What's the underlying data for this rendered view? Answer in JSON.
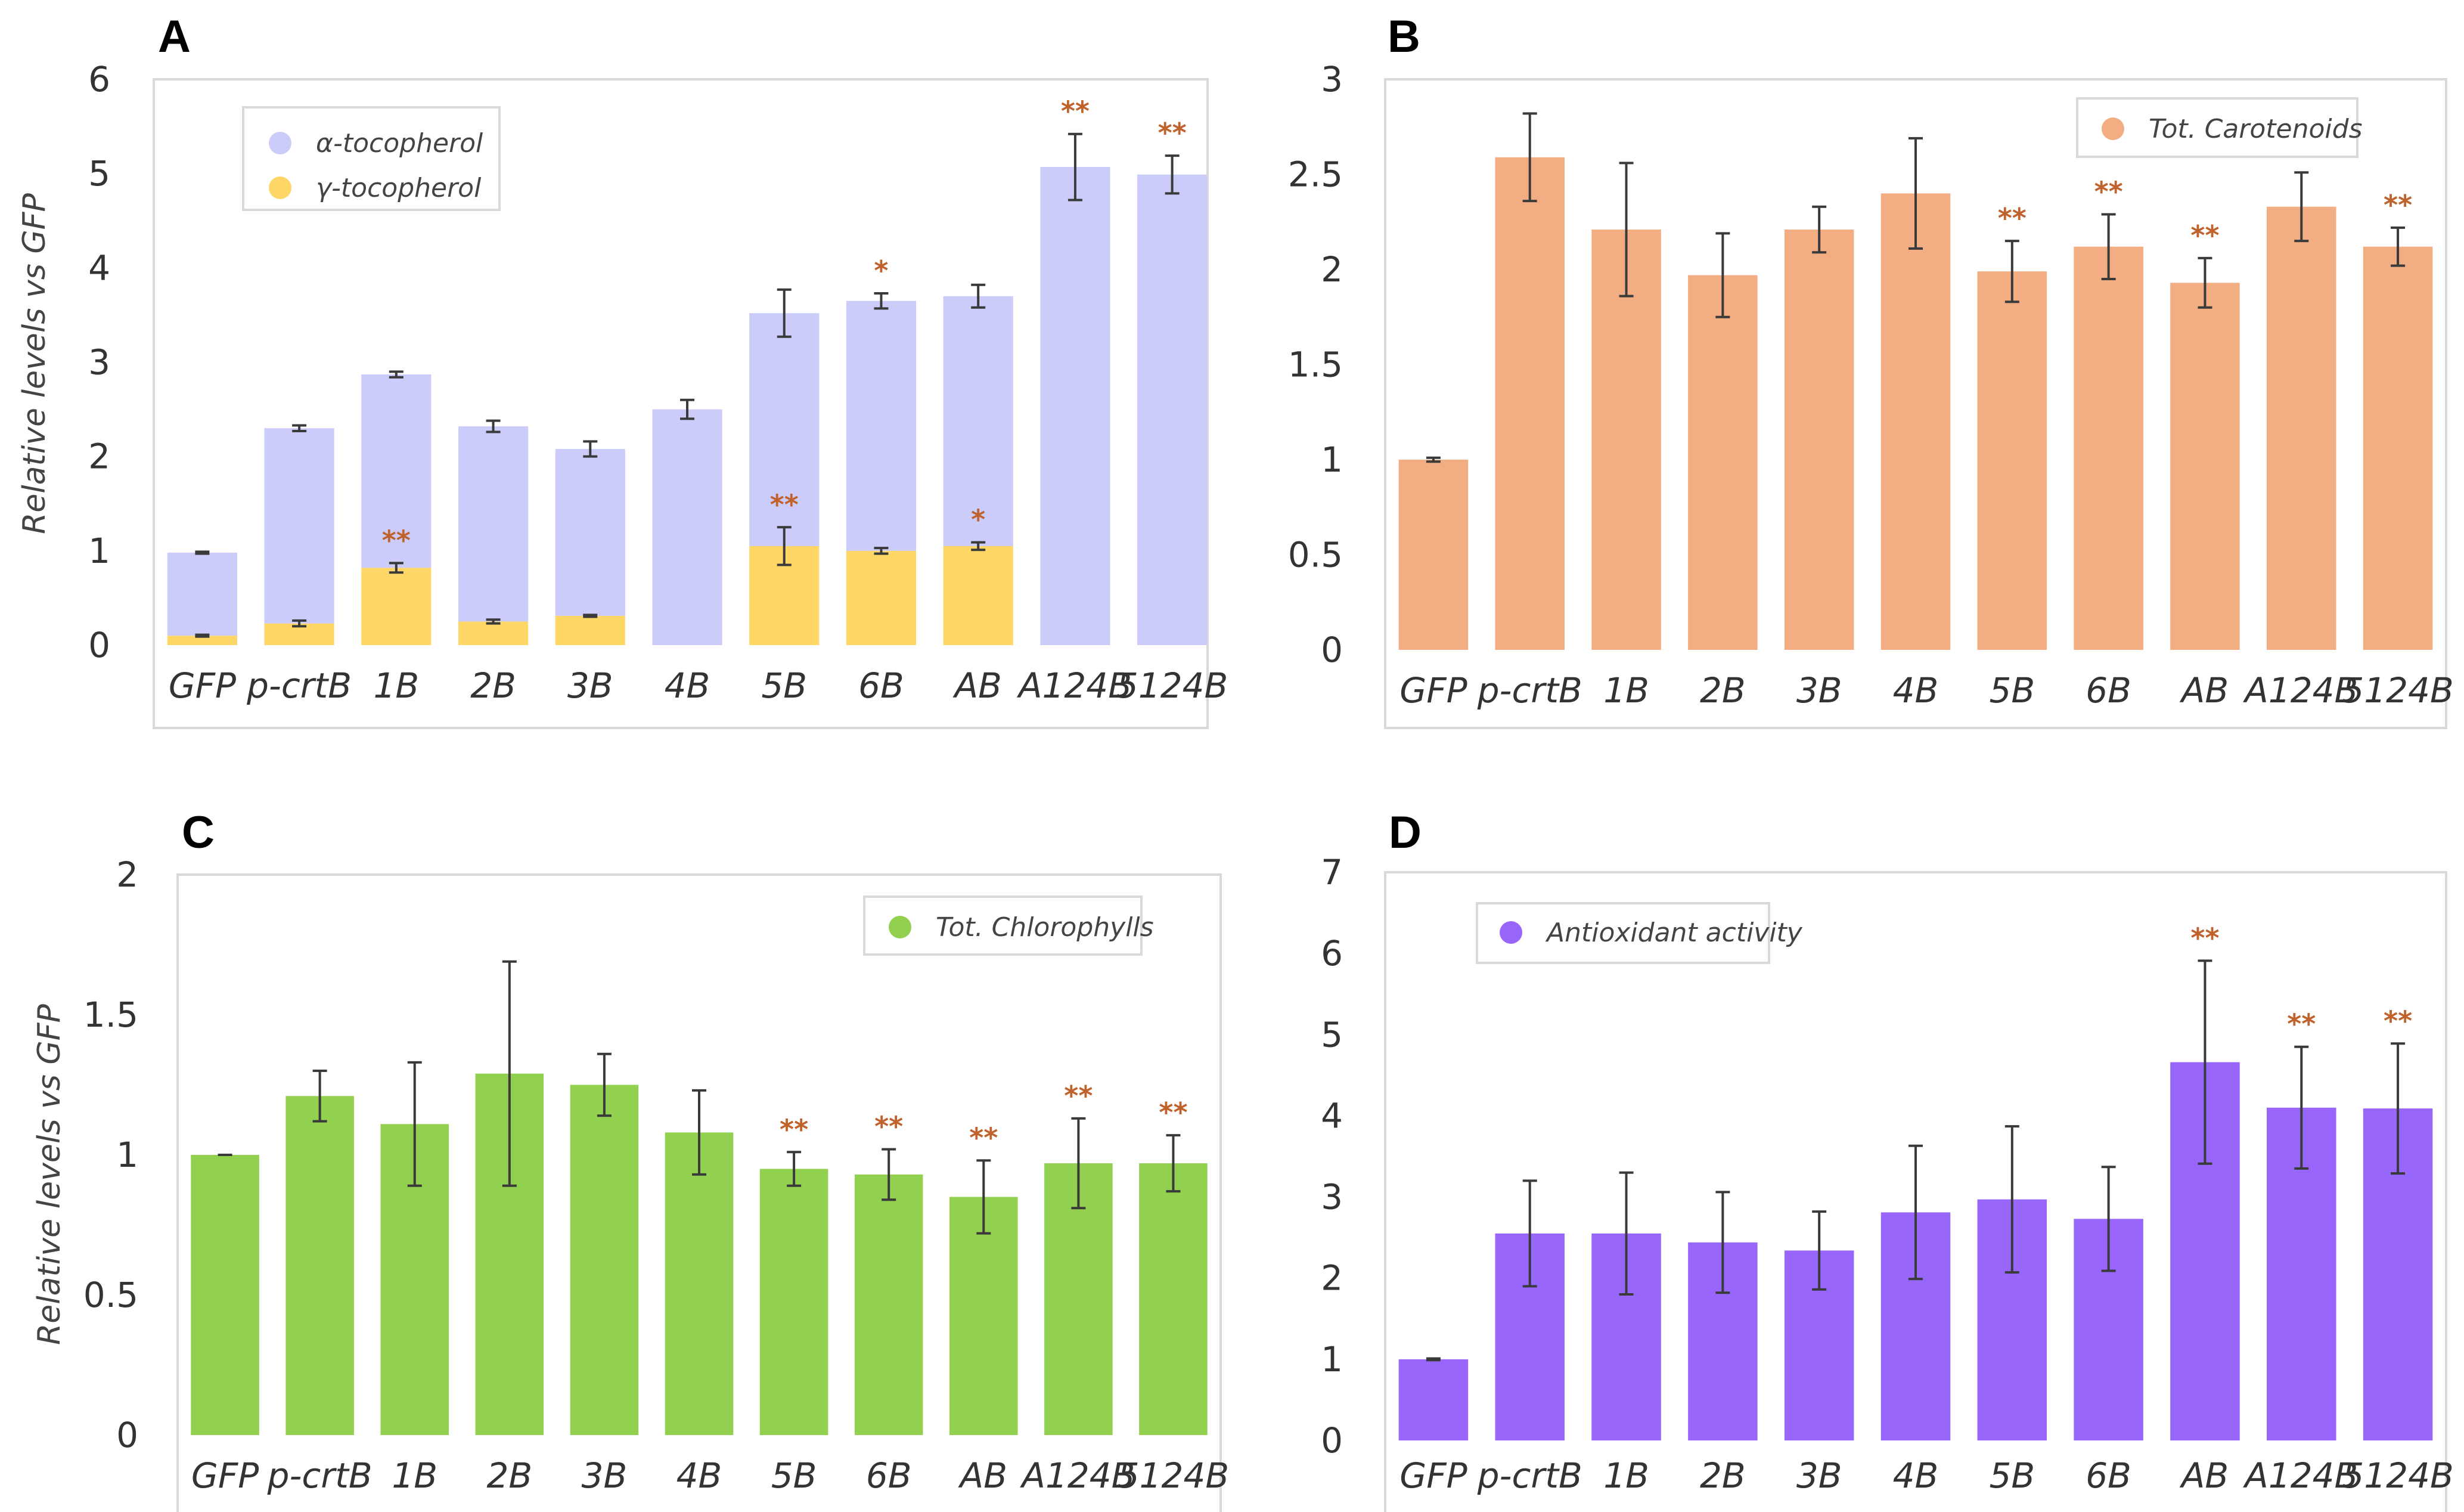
{
  "colors": {
    "alpha_toco": "#ccccfb",
    "gamma_toco": "#fed766",
    "carotenoids": "#f2ae82",
    "chlorophylls": "#92d050",
    "antioxidant": "#9966fb",
    "significance": "#c0622b"
  },
  "chart_data": [
    {
      "panel": "A",
      "type": "bar",
      "stacked": true,
      "title": "",
      "xlabel": "",
      "ylabel": "Relative levels vs GFP",
      "ylim": [
        0,
        6
      ],
      "yticks": [
        "0",
        "1",
        "2",
        "3",
        "4",
        "5",
        "6"
      ],
      "legend_position": "top-left",
      "categories": [
        "GFP",
        "p-crtB",
        "1B",
        "2B",
        "3B",
        "4B",
        "5B",
        "6B",
        "AB",
        "A124B",
        "5124B"
      ],
      "series": [
        {
          "name": "γ-tocopherol",
          "color_key": "gamma_toco",
          "values": [
            0.1,
            0.23,
            0.82,
            0.25,
            0.31,
            0,
            1.05,
            1.0,
            1.05,
            0,
            0
          ],
          "errors": [
            0.01,
            0.03,
            0.05,
            0.02,
            0.01,
            0,
            0.2,
            0.03,
            0.04,
            0,
            0
          ],
          "significance": [
            "",
            "",
            "**",
            "",
            "",
            "",
            "**",
            "",
            "*",
            "",
            ""
          ]
        },
        {
          "name": "α-tocopherol",
          "color_key": "alpha_toco",
          "values": [
            0.88,
            2.07,
            2.05,
            2.07,
            1.77,
            2.5,
            2.47,
            2.65,
            2.65,
            5.07,
            4.99
          ],
          "errors": [
            0.01,
            0.03,
            0.03,
            0.06,
            0.08,
            0.1,
            0.25,
            0.08,
            0.12,
            0.35,
            0.2
          ],
          "significance": [
            "",
            "",
            "",
            "",
            "",
            "",
            "",
            "*",
            "",
            "**",
            "**"
          ]
        }
      ]
    },
    {
      "panel": "B",
      "type": "bar",
      "title": "",
      "xlabel": "",
      "ylabel": "",
      "ylim": [
        0,
        3
      ],
      "yticks": [
        "0",
        "0.5",
        "1",
        "1.5",
        "2",
        "2.5",
        "3"
      ],
      "legend_position": "top-right",
      "categories": [
        "GFP",
        "p-crtB",
        "1B",
        "2B",
        "3B",
        "4B",
        "5B",
        "6B",
        "AB",
        "A124B",
        "5124B"
      ],
      "series": [
        {
          "name": "Tot. Carotenoids",
          "color_key": "carotenoids",
          "values": [
            1.0,
            2.59,
            2.21,
            1.97,
            2.21,
            2.4,
            1.99,
            2.12,
            1.93,
            2.33,
            2.12
          ],
          "errors": [
            0.01,
            0.23,
            0.35,
            0.22,
            0.12,
            0.29,
            0.16,
            0.17,
            0.13,
            0.18,
            0.1
          ],
          "significance": [
            "",
            "",
            "",
            "",
            "",
            "",
            "**",
            "**",
            "**",
            "",
            "**"
          ]
        }
      ]
    },
    {
      "panel": "C",
      "type": "bar",
      "title": "",
      "xlabel": "",
      "ylabel": "Relative levels vs GFP",
      "ylim": [
        0,
        2
      ],
      "yticks": [
        "0",
        "0.5",
        "1",
        "1.5",
        "2"
      ],
      "legend_position": "top-right",
      "categories": [
        "GFP",
        "p-crtB",
        "1B",
        "2B",
        "3B",
        "4B",
        "5B",
        "6B",
        "AB",
        "A124B",
        "5124B"
      ],
      "series": [
        {
          "name": "Tot. Chlorophylls",
          "color_key": "chlorophylls",
          "values": [
            1.0,
            1.21,
            1.11,
            1.29,
            1.25,
            1.08,
            0.95,
            0.93,
            0.85,
            0.97,
            0.97
          ],
          "errors": [
            0.0,
            0.09,
            0.22,
            0.4,
            0.11,
            0.15,
            0.06,
            0.09,
            0.13,
            0.16,
            0.1
          ],
          "significance": [
            "",
            "",
            "",
            "",
            "",
            "",
            "**",
            "**",
            "**",
            "**",
            "**"
          ]
        }
      ]
    },
    {
      "panel": "D",
      "type": "bar",
      "title": "",
      "xlabel": "",
      "ylabel": "",
      "ylim": [
        0,
        7
      ],
      "yticks": [
        "0",
        "1",
        "2",
        "3",
        "4",
        "5",
        "6",
        "7"
      ],
      "legend_position": "top-left",
      "categories": [
        "GFP",
        "p-crtB",
        "1B",
        "2B",
        "3B",
        "4B",
        "5B",
        "6B",
        "AB",
        "A124B",
        "5124B"
      ],
      "series": [
        {
          "name": "Antioxidant activity",
          "color_key": "antioxidant",
          "values": [
            1.0,
            2.55,
            2.55,
            2.44,
            2.34,
            2.81,
            2.97,
            2.73,
            4.66,
            4.1,
            4.09
          ],
          "errors": [
            0.01,
            0.65,
            0.75,
            0.62,
            0.48,
            0.82,
            0.9,
            0.64,
            1.25,
            0.75,
            0.8
          ],
          "significance": [
            "",
            "",
            "",
            "",
            "",
            "",
            "",
            "",
            "**",
            "**",
            "**"
          ]
        }
      ]
    }
  ]
}
